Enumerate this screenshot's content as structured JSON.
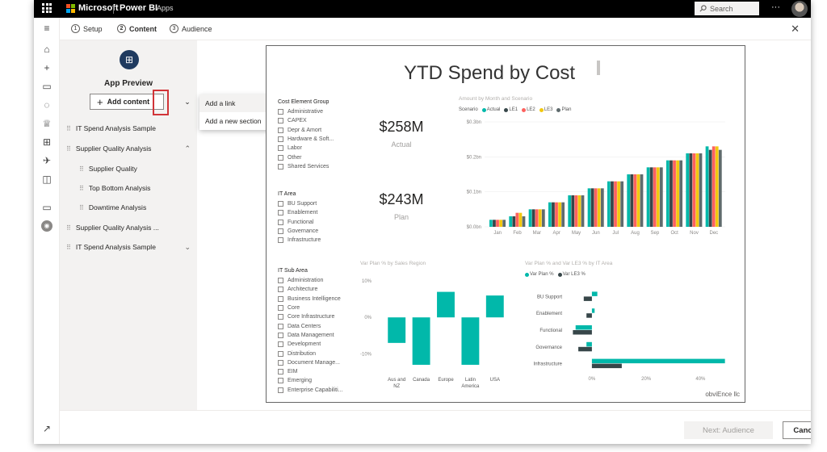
{
  "topbar": {
    "brand": "Microsoft",
    "product": "Power BI",
    "area": "Apps",
    "search_placeholder": "Search",
    "more": "···"
  },
  "wizard": {
    "steps": [
      {
        "num": "1",
        "label": "Setup"
      },
      {
        "num": "2",
        "label": "Content"
      },
      {
        "num": "3",
        "label": "Audience"
      }
    ],
    "close": "✕"
  },
  "app_preview": {
    "title": "App Preview",
    "add_content": "Add content",
    "chevron": "⌄"
  },
  "dropdown": {
    "items": [
      "Add a link",
      "Add a new section"
    ]
  },
  "nav": {
    "items": [
      {
        "label": "IT Spend Analysis Sample",
        "indent": 0,
        "arrow": ""
      },
      {
        "label": "Supplier Quality Analysis",
        "indent": 0,
        "arrow": "⌃"
      },
      {
        "label": "Supplier Quality",
        "indent": 1,
        "arrow": ""
      },
      {
        "label": "Top Bottom Analysis",
        "indent": 1,
        "arrow": ""
      },
      {
        "label": "Downtime Analysis",
        "indent": 1,
        "arrow": ""
      },
      {
        "label": "Supplier Quality Analysis ...",
        "indent": 0,
        "arrow": ""
      },
      {
        "label": "IT Spend Analysis Sample",
        "indent": 0,
        "arrow": "⌄"
      }
    ]
  },
  "footer": {
    "next": "Next: Audience",
    "cancel": "Cancel"
  },
  "report": {
    "title": "YTD Spend by Cost",
    "slicers": [
      {
        "header": "Cost Element Group",
        "options": [
          "Administrative",
          "CAPEX",
          "Depr & Amort",
          "Hardware & Soft...",
          "Labor",
          "Other",
          "Shared Services"
        ]
      },
      {
        "header": "IT Area",
        "options": [
          "BU Support",
          "Enablement",
          "Functional",
          "Governance",
          "Infrastructure"
        ]
      },
      {
        "header": "IT Sub Area",
        "options": [
          "Administration",
          "Architecture",
          "Business Intelligence",
          "Core",
          "Core Infrastructure",
          "Data Centers",
          "Data Management",
          "Development",
          "Distribution",
          "Document Manage...",
          "EIM",
          "Emerging",
          "Enterprise Capabiliti..."
        ]
      }
    ],
    "kpi1": {
      "value": "$258M",
      "label": "Actual"
    },
    "kpi2": {
      "value": "$243M",
      "label": "Plan"
    },
    "watermark": "obviEnce llc"
  },
  "colors": {
    "actual": "#01b8aa",
    "le1": "#374649",
    "le2": "#fd625e",
    "le3": "#f2c80f",
    "plan": "#5f6b6d"
  },
  "chart_data": [
    {
      "type": "bar",
      "title": "Amount by Month and Scenario",
      "legend_title": "Scenario",
      "categories": [
        "Jan",
        "Feb",
        "Mar",
        "Apr",
        "May",
        "Jun",
        "Jul",
        "Aug",
        "Sep",
        "Oct",
        "Nov",
        "Dec"
      ],
      "series": [
        {
          "name": "Actual",
          "values": [
            0.02,
            0.03,
            0.05,
            0.07,
            0.09,
            0.11,
            0.13,
            0.15,
            0.17,
            0.19,
            0.21,
            0.23
          ]
        },
        {
          "name": "LE1",
          "values": [
            0.02,
            0.03,
            0.05,
            0.07,
            0.09,
            0.11,
            0.13,
            0.15,
            0.17,
            0.19,
            0.21,
            0.22
          ]
        },
        {
          "name": "LE2",
          "values": [
            0.02,
            0.04,
            0.05,
            0.07,
            0.09,
            0.11,
            0.13,
            0.15,
            0.17,
            0.19,
            0.21,
            0.23
          ]
        },
        {
          "name": "LE3",
          "values": [
            0.02,
            0.04,
            0.05,
            0.07,
            0.09,
            0.11,
            0.13,
            0.15,
            0.17,
            0.19,
            0.21,
            0.23
          ]
        },
        {
          "name": "Plan",
          "values": [
            0.02,
            0.03,
            0.05,
            0.07,
            0.09,
            0.11,
            0.13,
            0.15,
            0.17,
            0.19,
            0.21,
            0.22
          ]
        }
      ],
      "yticks": [
        "$0.0bn",
        "$0.1bn",
        "$0.2bn",
        "$0.3bn"
      ],
      "ylim": [
        0,
        0.3
      ]
    },
    {
      "type": "bar",
      "title": "Var Plan % by Sales Region",
      "categories": [
        "Aus and NZ",
        "Canada",
        "Europe",
        "Latin America",
        "USA"
      ],
      "values": [
        -7,
        -13,
        7,
        -13,
        6
      ],
      "yticks": [
        "10%",
        "0%",
        "-10%"
      ],
      "ylim": [
        -15,
        12
      ]
    },
    {
      "type": "bar",
      "orientation": "horizontal",
      "title": "Var Plan % and Var LE3 % by IT Area",
      "categories": [
        "BU Support",
        "Enablement",
        "Functional",
        "Governance",
        "Infrastructure"
      ],
      "series": [
        {
          "name": "Var Plan %",
          "values": [
            2,
            1,
            -6,
            -2,
            49
          ]
        },
        {
          "name": "Var LE3 %",
          "values": [
            -3,
            -2,
            -7,
            -5,
            11
          ]
        }
      ],
      "xticks": [
        "0%",
        "20%",
        "40%"
      ],
      "xlim": [
        -8,
        50
      ]
    }
  ]
}
